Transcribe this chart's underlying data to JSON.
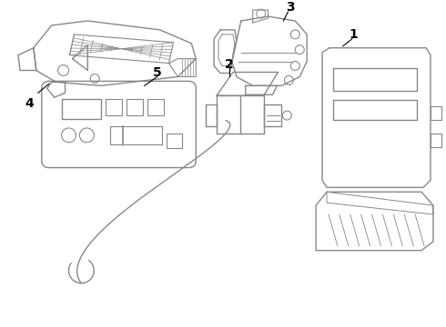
{
  "background_color": "#ffffff",
  "line_color": "#888888",
  "label_color": "#000000",
  "line_width": 1.0,
  "figsize": [
    4.9,
    3.6
  ],
  "dpi": 100,
  "xlim": [
    0,
    490
  ],
  "ylim": [
    0,
    360
  ]
}
